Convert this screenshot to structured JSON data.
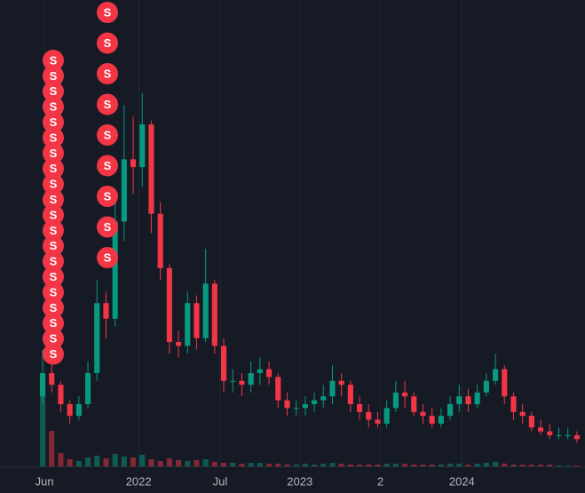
{
  "chart_data": {
    "type": "candlestick",
    "up_color": "#089981",
    "down_color": "#f23645",
    "open": [
      18,
      24,
      21,
      16,
      13,
      16,
      24,
      42,
      38,
      63,
      79,
      77,
      88,
      65,
      51,
      32,
      31,
      42,
      33,
      47,
      31,
      22,
      22,
      21,
      24,
      25,
      23,
      17,
      15,
      15,
      16,
      17,
      18,
      22,
      21,
      16,
      14,
      12,
      11,
      15,
      19,
      18,
      14,
      13,
      11,
      13,
      16,
      18,
      16,
      19,
      22,
      25,
      18,
      14,
      13,
      10,
      9,
      8,
      8,
      8
    ],
    "high": [
      30,
      27,
      22,
      17,
      18,
      27,
      48,
      45,
      68,
      93,
      90,
      96,
      89,
      68,
      52,
      35,
      45,
      44,
      56,
      48,
      33,
      25,
      24,
      27,
      28,
      27,
      24,
      19,
      17,
      18,
      19,
      21,
      26,
      24,
      22,
      18,
      16,
      14,
      17,
      22,
      22,
      19,
      16,
      15,
      15,
      18,
      21,
      20,
      21,
      24,
      29,
      26,
      19,
      16,
      14,
      12,
      11,
      10,
      10,
      9
    ],
    "low": [
      16,
      19,
      14,
      11,
      12,
      15,
      22,
      33,
      36,
      58,
      70,
      72,
      60,
      48,
      29,
      28,
      29,
      30,
      32,
      29,
      19,
      19,
      18,
      19,
      21,
      21,
      15,
      13,
      13,
      13,
      14,
      15,
      16,
      18,
      14,
      12,
      10,
      10,
      10,
      14,
      15,
      13,
      11,
      10,
      10,
      12,
      14,
      14,
      15,
      18,
      21,
      16,
      12,
      11,
      9,
      8,
      7,
      7,
      7,
      6
    ],
    "close": [
      24,
      21,
      16,
      13,
      16,
      24,
      42,
      38,
      63,
      79,
      77,
      88,
      65,
      51,
      32,
      31,
      42,
      33,
      47,
      31,
      22,
      22,
      21,
      24,
      25,
      23,
      17,
      15,
      15,
      16,
      17,
      18,
      22,
      21,
      16,
      14,
      12,
      11,
      15,
      19,
      18,
      14,
      13,
      11,
      13,
      16,
      18,
      16,
      19,
      22,
      25,
      18,
      14,
      13,
      10,
      9,
      8,
      8,
      8,
      7
    ],
    "volume": [
      85,
      40,
      15,
      8,
      6,
      10,
      12,
      9,
      14,
      11,
      10,
      13,
      8,
      6,
      9,
      7,
      6,
      7,
      8,
      5,
      4,
      4,
      3,
      4,
      4,
      3,
      3,
      2,
      2,
      3,
      2,
      3,
      4,
      3,
      2,
      2,
      2,
      2,
      3,
      3,
      3,
      2,
      2,
      2,
      2,
      3,
      3,
      2,
      3,
      4,
      5,
      3,
      2,
      2,
      2,
      2,
      2,
      1,
      1,
      1
    ],
    "xlim": [
      -0.2,
      59.6
    ],
    "ylim": [
      0,
      120
    ],
    "volume_lim": [
      0,
      100
    ],
    "xticks": [
      {
        "value": 0.2,
        "label": "Jun"
      },
      {
        "value": 10.6,
        "label": "2022"
      },
      {
        "value": 19.6,
        "label": "Jul"
      },
      {
        "value": 28.4,
        "label": "2023"
      },
      {
        "value": 37.3,
        "label": "2"
      },
      {
        "value": 46.3,
        "label": "2024"
      }
    ],
    "grid": true,
    "markers": [
      {
        "label": "S",
        "x": 1.17,
        "count": 20,
        "color": "#f23645"
      },
      {
        "label": "S",
        "x": 7.15,
        "count": 9,
        "color": "#f23645"
      }
    ]
  }
}
